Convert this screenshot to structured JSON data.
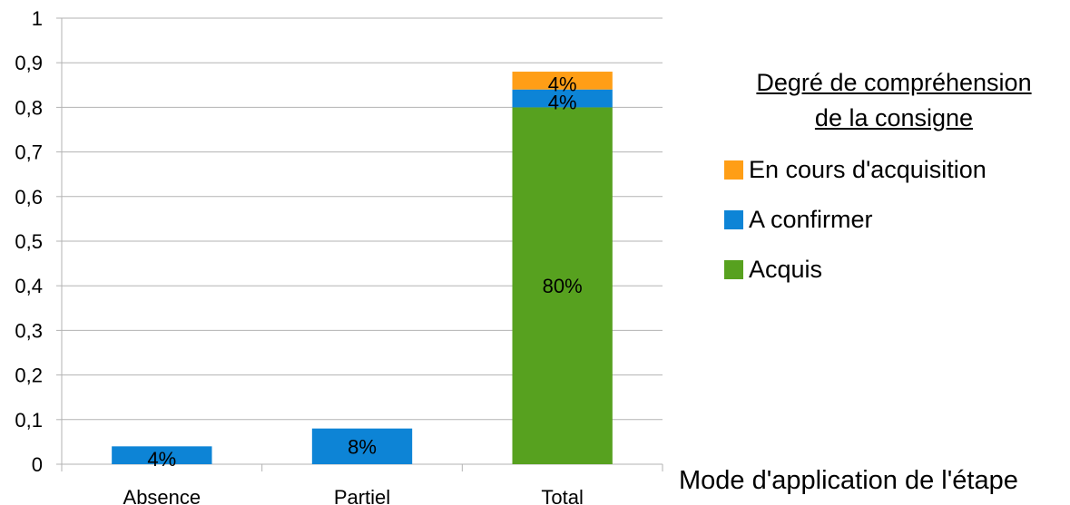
{
  "chart_data": {
    "type": "bar",
    "stacked": true,
    "categories": [
      "Absence",
      "Partiel",
      "Total"
    ],
    "series": [
      {
        "name": "Acquis",
        "color": "#57a11f",
        "values": [
          0,
          0,
          0.8
        ],
        "labels": [
          "",
          "",
          "80%"
        ]
      },
      {
        "name": "A confirmer",
        "color": "#0d84d6",
        "values": [
          0.04,
          0.08,
          0.04
        ],
        "labels": [
          "4%",
          "8%",
          "4%"
        ]
      },
      {
        "name": "En cours d'acquisition",
        "color": "#ff9e16",
        "values": [
          0,
          0,
          0.04
        ],
        "labels": [
          "",
          "",
          "4%"
        ]
      }
    ],
    "ylim": [
      0,
      1
    ],
    "yticks": [
      "0",
      "0,1",
      "0,2",
      "0,3",
      "0,4",
      "0,5",
      "0,6",
      "0,7",
      "0,8",
      "0,9",
      "1"
    ],
    "grid": true,
    "legend_title_lines": [
      "Degré de compréhension",
      "de la consigne"
    ],
    "legend_order": [
      "En cours d'acquisition",
      "A confirmer",
      "Acquis"
    ],
    "legend_position": "right",
    "xlabel": "Mode d'application de l'étape"
  }
}
